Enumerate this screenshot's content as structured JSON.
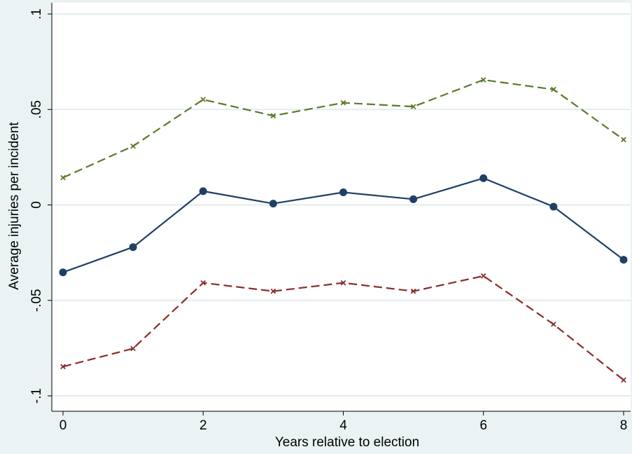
{
  "chart_data": {
    "type": "line",
    "title": "",
    "xlabel": "Years relative to election",
    "ylabel": "Average injuries per incident",
    "x": [
      0,
      1,
      2,
      3,
      4,
      5,
      6,
      7,
      8
    ],
    "xticks": [
      0,
      2,
      4,
      6,
      8
    ],
    "xtick_labels": [
      "0",
      "2",
      "4",
      "6",
      "8"
    ],
    "yticks": [
      -0.1,
      -0.05,
      0,
      0.05,
      0.1
    ],
    "ytick_labels": [
      "-.1",
      "-.05",
      "0",
      ".05",
      ".1"
    ],
    "xlim": [
      0,
      8
    ],
    "ylim": [
      -0.1,
      0.1
    ],
    "grid": true,
    "legend": "none",
    "series": [
      {
        "values": [
          0.0143,
          0.0308,
          0.0552,
          0.0467,
          0.0535,
          0.0515,
          0.0655,
          0.0605,
          0.0342
        ],
        "color": "#5b7a2a",
        "dash": true,
        "marker": "x"
      },
      {
        "values": [
          -0.0353,
          -0.0221,
          0.0072,
          0.0007,
          0.0066,
          0.003,
          0.014,
          -0.0009,
          -0.0287
        ],
        "color": "#1f3f66",
        "dash": false,
        "marker": "circle"
      },
      {
        "values": [
          -0.0847,
          -0.0752,
          -0.0408,
          -0.0452,
          -0.0408,
          -0.0452,
          -0.0372,
          -0.0625,
          -0.0917
        ],
        "color": "#8b2b2b",
        "dash": true,
        "marker": "x"
      }
    ]
  }
}
